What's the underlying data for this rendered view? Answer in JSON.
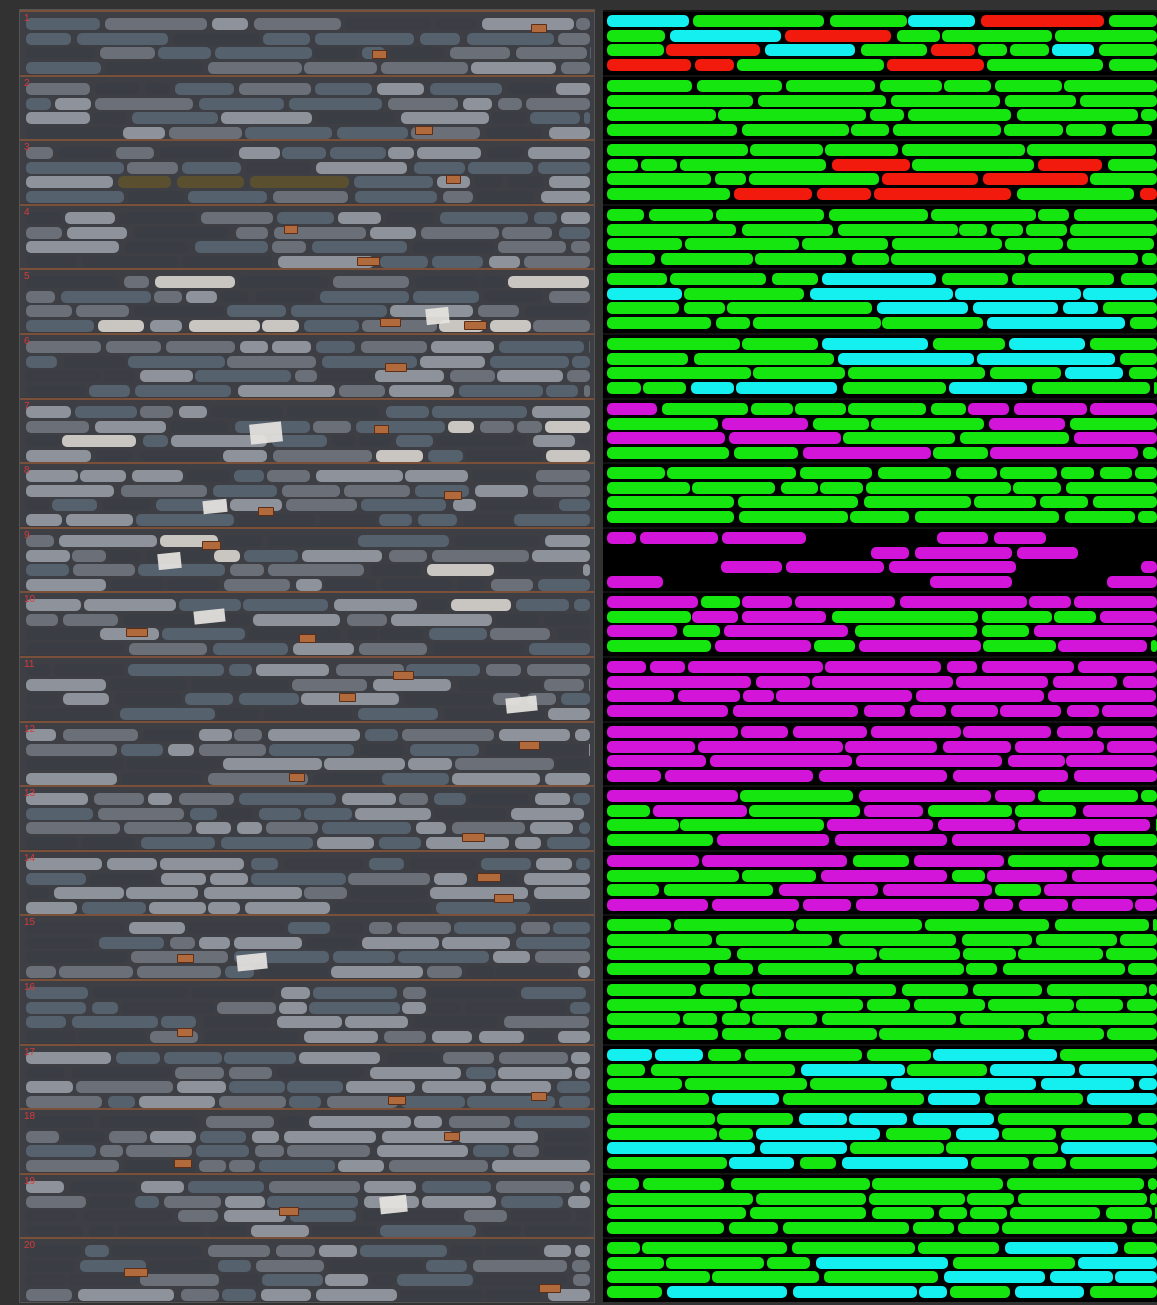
{
  "figure": {
    "photo_panel": {
      "box_labels": [
        "1",
        "2",
        "3",
        "4",
        "5",
        "6",
        "7",
        "8",
        "9",
        "10",
        "11",
        "12",
        "13",
        "14",
        "15",
        "16",
        "17",
        "18",
        "19",
        "20"
      ]
    },
    "classification_panel": {
      "colors": {
        "green": "#15e60f",
        "cyan": "#14f0f0",
        "magenta": "#d314d9",
        "red": "#f21a0c",
        "background": "#000000"
      },
      "box_dominant_classes": [
        "green+cyan+red",
        "green",
        "green+red",
        "green",
        "green+cyan",
        "green+cyan",
        "magenta+green",
        "green",
        "magenta+black",
        "magenta+green",
        "magenta",
        "magenta",
        "magenta+green",
        "magenta+green",
        "green",
        "green",
        "green+cyan",
        "green+cyan",
        "green",
        "green+cyan"
      ]
    },
    "photo_colors": {
      "rock_dark": "#3b3d44",
      "rock_blue": "#56616e",
      "rock_grey": "#6b6f78",
      "rock_light": "#8e939b",
      "box_divider": "#7a4a30",
      "label_red": "#d83a3a"
    }
  }
}
